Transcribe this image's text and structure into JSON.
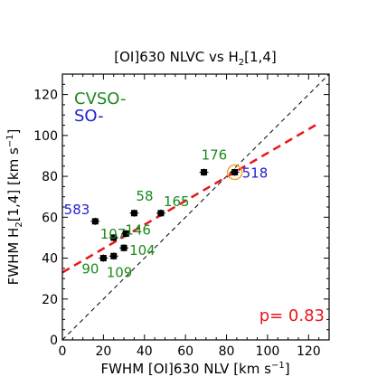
{
  "chart_data": {
    "type": "scatter",
    "title_parts": [
      "[OI]630 NLVC vs H",
      "2",
      "[1,4]"
    ],
    "xlabel_parts": [
      "FWHM [OI]630 NLV [km s",
      "−1",
      "]"
    ],
    "ylabel_parts": [
      "FWHM H",
      "2",
      "[1,4] [km s",
      "−1",
      "]"
    ],
    "xlim": [
      0,
      130
    ],
    "ylim": [
      0,
      130
    ],
    "xticks": [
      "0",
      "20",
      "40",
      "60",
      "80",
      "100",
      "120"
    ],
    "yticks": [
      "0",
      "20",
      "40",
      "60",
      "80",
      "100",
      "120"
    ],
    "grid": false,
    "legend": {
      "placement": "top-left",
      "entries": [
        {
          "label": "CVSO-",
          "color": "#1a8a1a"
        },
        {
          "label": "SO-",
          "color": "#2020d0"
        }
      ]
    },
    "colors": {
      "cvso": "#1a8a1a",
      "so": "#2020d0",
      "fit": "#e8161b",
      "highlight": "#f5a623",
      "points": "#000000"
    },
    "points": [
      {
        "id": "583",
        "x": 16,
        "y": 58,
        "group": "so"
      },
      {
        "id": "58",
        "x": 35,
        "y": 62,
        "group": "cvso"
      },
      {
        "id": "165",
        "x": 48,
        "y": 62,
        "group": "cvso"
      },
      {
        "id": "107",
        "x": 25,
        "y": 50,
        "group": "cvso"
      },
      {
        "id": "146",
        "x": 31,
        "y": 52,
        "group": "cvso"
      },
      {
        "id": "104",
        "x": 30,
        "y": 45,
        "group": "cvso"
      },
      {
        "id": "109",
        "x": 25,
        "y": 41,
        "group": "cvso"
      },
      {
        "id": "90",
        "x": 20,
        "y": 40,
        "group": "cvso"
      },
      {
        "id": "176",
        "x": 69,
        "y": 82,
        "group": "cvso"
      },
      {
        "id": "518",
        "x": 84,
        "y": 82,
        "group": "so",
        "highlight": true
      }
    ],
    "fit_line": {
      "x": [
        0,
        125
      ],
      "y": [
        33,
        106
      ]
    },
    "one_to_one": {
      "x": [
        0,
        130
      ],
      "y": [
        0,
        130
      ]
    },
    "annotation": "p= 0.83"
  }
}
